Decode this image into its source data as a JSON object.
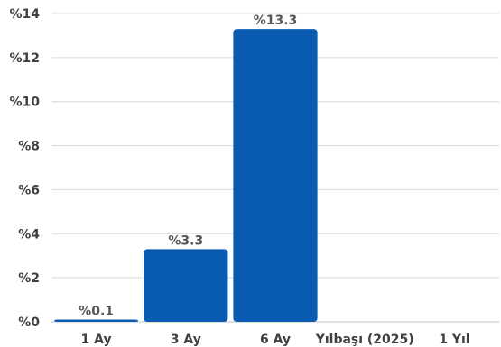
{
  "chart_data": {
    "type": "bar",
    "categories": [
      "1 Ay",
      "3 Ay",
      "6 Ay",
      "Yılbaşı (2025)",
      "1 Yıl"
    ],
    "values": [
      0.1,
      3.3,
      13.3,
      null,
      null
    ],
    "data_labels": [
      "%0.1",
      "%3.3",
      "%13.3",
      "",
      ""
    ],
    "ylim": [
      0,
      14
    ],
    "yticks": [
      0,
      2,
      4,
      6,
      8,
      10,
      12,
      14
    ],
    "ytick_labels": [
      "%0",
      "%2",
      "%4",
      "%6",
      "%8",
      "%10",
      "%12",
      "%14"
    ],
    "grid": true,
    "bar_color": "#0a5cb3",
    "title": "",
    "xlabel": "",
    "ylabel": ""
  }
}
